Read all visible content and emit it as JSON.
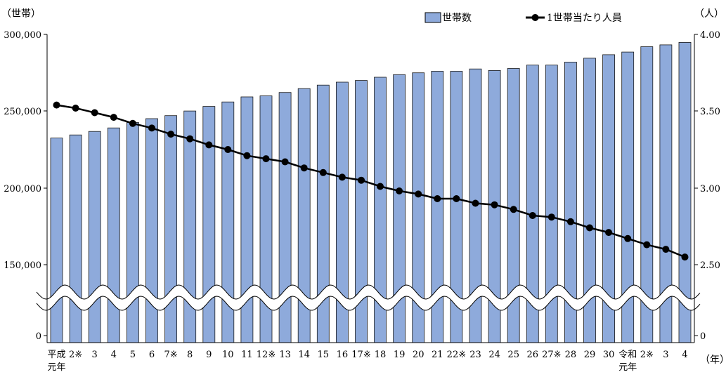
{
  "chart_data": {
    "type": "bar",
    "left_axis_unit": "（世帯）",
    "right_axis_unit": "（人）",
    "x_axis_unit": "（年）",
    "left_ticks": [
      "300,000",
      "250,000",
      "200,000",
      "150,000",
      "0"
    ],
    "right_ticks": [
      "4.00",
      "3.50",
      "3.00",
      "2.50",
      "0"
    ],
    "y_left_range": [
      150000,
      300000
    ],
    "y_right_range": [
      2.5,
      4.0
    ],
    "axis_break": true,
    "legend_position": "top-right",
    "categories": [
      [
        "平成",
        "元年"
      ],
      [
        "2※"
      ],
      [
        "3"
      ],
      [
        "4"
      ],
      [
        "5"
      ],
      [
        "6"
      ],
      [
        "7※"
      ],
      [
        "8"
      ],
      [
        "9"
      ],
      [
        "10"
      ],
      [
        "11"
      ],
      [
        "12※"
      ],
      [
        "13"
      ],
      [
        "14"
      ],
      [
        "15"
      ],
      [
        "16"
      ],
      [
        "17※"
      ],
      [
        "18"
      ],
      [
        "19"
      ],
      [
        "20"
      ],
      [
        "21"
      ],
      [
        "22※"
      ],
      [
        "23"
      ],
      [
        "24"
      ],
      [
        "25"
      ],
      [
        "26"
      ],
      [
        "27※"
      ],
      [
        "28"
      ],
      [
        "29"
      ],
      [
        "30"
      ],
      [
        "令和",
        "元年"
      ],
      [
        "2※"
      ],
      [
        "3"
      ],
      [
        "4"
      ]
    ],
    "series": [
      {
        "name": "世帯数",
        "type": "bar",
        "axis": "left",
        "color": "#8eaadb",
        "values": [
          232500,
          234500,
          236800,
          239100,
          242600,
          245100,
          247100,
          250100,
          253100,
          256000,
          259300,
          260000,
          262200,
          264700,
          267000,
          268900,
          270000,
          272100,
          273800,
          275000,
          276000,
          276000,
          277500,
          276500,
          277800,
          280000,
          280000,
          282000,
          284500,
          286800,
          288500,
          292000,
          293200,
          294800
        ]
      },
      {
        "name": "1世帯当たり人員",
        "type": "line",
        "axis": "right",
        "color": "#000000",
        "values": [
          3.54,
          3.52,
          3.49,
          3.46,
          3.42,
          3.39,
          3.35,
          3.32,
          3.28,
          3.25,
          3.21,
          3.19,
          3.17,
          3.13,
          3.1,
          3.07,
          3.05,
          3.01,
          2.98,
          2.96,
          2.93,
          2.93,
          2.9,
          2.89,
          2.86,
          2.82,
          2.81,
          2.78,
          2.74,
          2.71,
          2.67,
          2.63,
          2.6,
          2.55
        ]
      }
    ]
  }
}
